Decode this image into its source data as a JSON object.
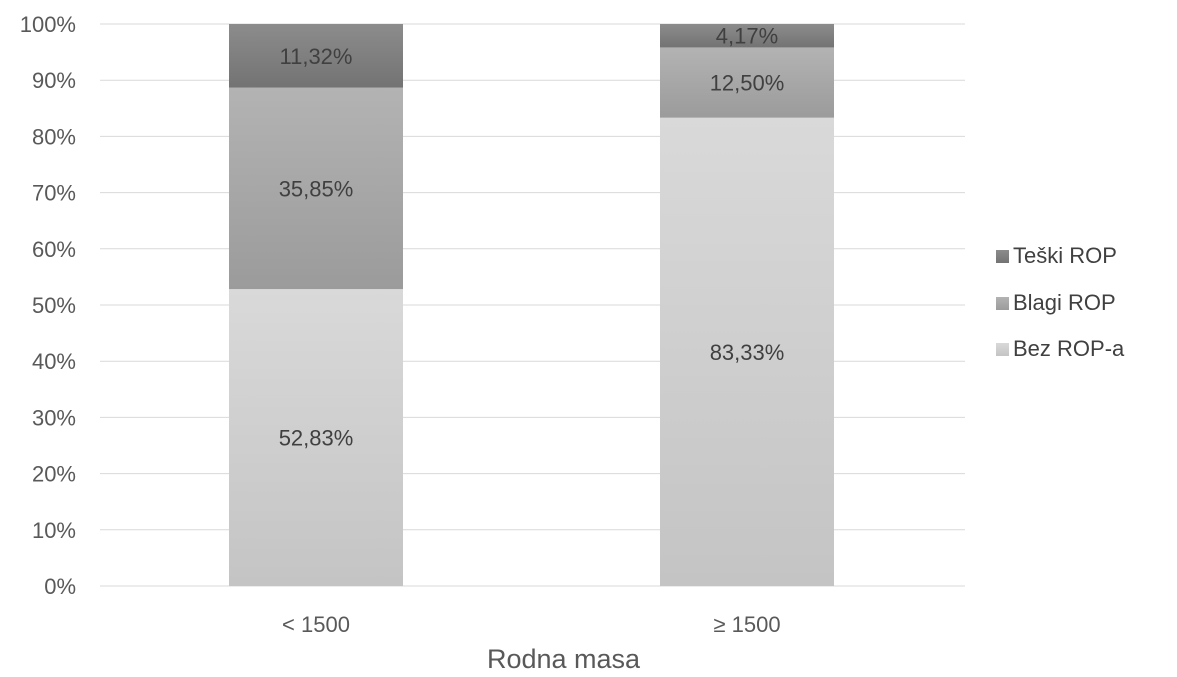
{
  "chart_data": {
    "type": "bar",
    "stacked": true,
    "percent": true,
    "categories": [
      "< 1500",
      "≥ 1500"
    ],
    "series": [
      {
        "name": "Bez ROP-a",
        "values": [
          52.83,
          83.33
        ],
        "labels": [
          "52,83%",
          "83,33%"
        ],
        "color": "#cfcfcf"
      },
      {
        "name": "Blagi ROP",
        "values": [
          35.85,
          12.5
        ],
        "labels": [
          "35,85%",
          "12,50%"
        ],
        "color": "#a8a8a8"
      },
      {
        "name": "Teški ROP",
        "values": [
          11.32,
          4.17
        ],
        "labels": [
          "11,32%",
          "4,17%"
        ],
        "color": "#7f7f7f"
      }
    ],
    "yticks": [
      "0%",
      "10%",
      "20%",
      "30%",
      "40%",
      "50%",
      "60%",
      "70%",
      "80%",
      "90%",
      "100%"
    ],
    "ylim": [
      0,
      100
    ],
    "xlabel": "Rodna masa",
    "ylabel": "",
    "title": "",
    "grid": true,
    "legend_position": "right",
    "legend_order": [
      "Teški ROP",
      "Blagi ROP",
      "Bez ROP-a"
    ]
  }
}
